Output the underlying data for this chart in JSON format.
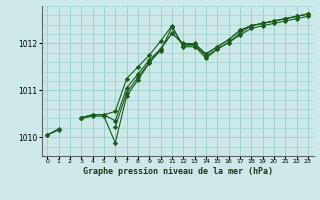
{
  "title": "Graphe pression niveau de la mer (hPa)",
  "bg_color": "#cce8e8",
  "grid_color": "#99cccc",
  "line_color": "#1a5c1a",
  "xlim": [
    -0.5,
    23.5
  ],
  "ylim": [
    1009.6,
    1012.8
  ],
  "yticks": [
    1010,
    1011,
    1012
  ],
  "xtick_labels": [
    "0",
    "1",
    "2",
    "3",
    "4",
    "5",
    "6",
    "7",
    "8",
    "9",
    "10",
    "11",
    "12",
    "13",
    "14",
    "15",
    "16",
    "17",
    "18",
    "19",
    "20",
    "21",
    "22",
    "23"
  ],
  "series": [
    [
      1010.05,
      1010.18,
      null,
      1010.42,
      1010.48,
      1010.48,
      1010.35,
      1011.05,
      1011.35,
      1011.65,
      1011.88,
      1012.22,
      1012.0,
      1012.0,
      1011.78,
      1011.93,
      1012.08,
      1012.28,
      1012.38,
      1012.43,
      1012.48,
      1012.53,
      1012.58,
      1012.63
    ],
    [
      null,
      null,
      null,
      1010.42,
      1010.48,
      1010.48,
      1010.55,
      1011.25,
      1011.5,
      1011.75,
      1012.05,
      1012.38,
      1011.93,
      1011.93,
      1011.78,
      1011.93,
      1012.08,
      1012.28,
      1012.38,
      1012.43,
      1012.48,
      1012.53,
      1012.58,
      1012.63
    ],
    [
      null,
      null,
      null,
      null,
      null,
      null,
      1010.22,
      1010.95,
      1011.28,
      1011.6,
      1011.85,
      1012.35,
      1011.95,
      1011.95,
      1011.68,
      1011.88,
      1012.02,
      1012.18,
      1012.32,
      1012.38,
      1012.43,
      1012.48,
      1012.53,
      1012.58
    ],
    [
      1010.05,
      1010.15,
      null,
      1010.4,
      1010.45,
      1010.45,
      1009.88,
      1010.88,
      1011.22,
      1011.58,
      1011.88,
      1012.22,
      1011.98,
      1011.98,
      1011.73,
      1011.88,
      1012.02,
      1012.22,
      1012.38,
      1012.43,
      1012.48,
      1012.53,
      1012.58,
      1012.63
    ]
  ]
}
